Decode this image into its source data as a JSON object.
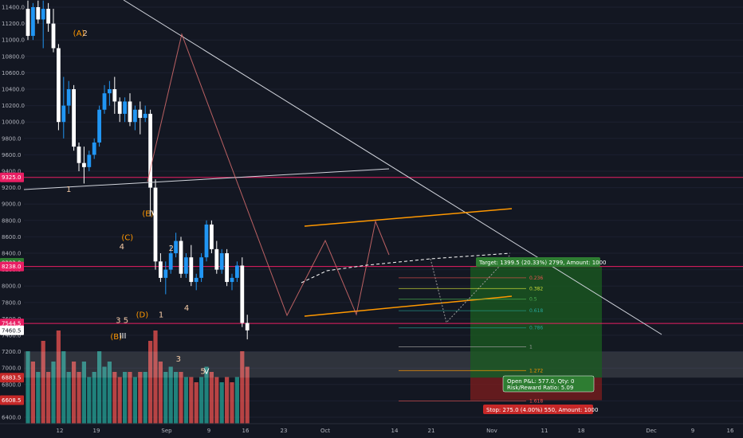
{
  "colors": {
    "background": "#131722",
    "bull": "#2196f3",
    "bear": "#ffffff",
    "vol_bull": "#26a69a",
    "vol_bear": "#ef5350",
    "hline": "#e91e63",
    "orange": "#ff9800",
    "wave_label": "#f5cba7",
    "target_green": "#1b5e20",
    "stop_red": "#7f1d1d",
    "text": "#b2b5be"
  },
  "chart_data": {
    "type": "candlestick",
    "title": "",
    "y_axis": {
      "ticks": [
        "11400.0",
        "11200.0",
        "11000.0",
        "10800.0",
        "10600.0",
        "10400.0",
        "10200.0",
        "10000.0",
        "9800.0",
        "9600.0",
        "9400.0",
        "9200.0",
        "9000.0",
        "8800.0",
        "8600.0",
        "8400.0",
        "8200.0",
        "8000.0",
        "7800.0",
        "7600.0",
        "7400.0",
        "7200.0",
        "7000.0",
        "6800.0",
        "6600.0",
        "6400.0"
      ],
      "range": [
        6320,
        11480
      ]
    },
    "x_axis": {
      "ticks": [
        "12",
        "19",
        "Sep",
        "9",
        "16",
        "23",
        "Oct",
        "14",
        "21",
        "Nov",
        "11",
        "18",
        "Dec",
        "9",
        "16"
      ]
    },
    "price_tags": [
      {
        "label": "9325.0",
        "value": 9325
      },
      {
        "label": "8283.0",
        "value": 8283
      },
      {
        "label": "8238.0",
        "value": 8238
      },
      {
        "label": "7544.5",
        "value": 7544.5
      },
      {
        "label": "7460.5",
        "value": 7460.5
      },
      {
        "label": "6883.5",
        "value": 6883.5
      },
      {
        "label": "6608.5",
        "value": 6608.5
      }
    ],
    "horizontal_lines": [
      9325,
      8238,
      7544.5
    ],
    "wave_labels": [
      {
        "text": "(A)",
        "x": 10,
        "y": 11050
      },
      {
        "text": "2",
        "x": 11.2,
        "y": 11050
      },
      {
        "text": "1",
        "x": 8,
        "y": 9150
      },
      {
        "text": "4",
        "x": 18.4,
        "y": 8450
      },
      {
        "text": "(C)",
        "x": 19.5,
        "y": 8560
      },
      {
        "text": "3",
        "x": 17.7,
        "y": 7550
      },
      {
        "text": "5",
        "x": 19.2,
        "y": 7550
      },
      {
        "text": "(B)",
        "x": 17.3,
        "y": 7350
      },
      {
        "text": "III",
        "x": 18.6,
        "y": 7360
      },
      {
        "text": "(E)",
        "x": 23.5,
        "y": 8850
      },
      {
        "text": "IV",
        "x": 24.5,
        "y": 8850
      },
      {
        "text": "(D)",
        "x": 22.4,
        "y": 7620
      },
      {
        "text": "2",
        "x": 28.1,
        "y": 8430
      },
      {
        "text": "1",
        "x": 26.1,
        "y": 7620
      },
      {
        "text": "4",
        "x": 31.1,
        "y": 7700
      },
      {
        "text": "3",
        "x": 29.5,
        "y": 7080
      },
      {
        "text": "5",
        "x": 34.3,
        "y": 6930
      },
      {
        "text": "V",
        "x": 35,
        "y": 6930
      }
    ],
    "fib_levels": [
      {
        "label": "0.236",
        "value": 8100
      },
      {
        "label": "0.382",
        "value": 7970
      },
      {
        "label": "0.5",
        "value": 7840
      },
      {
        "label": "0.618",
        "value": 7700
      },
      {
        "label": "0.786",
        "value": 7490
      },
      {
        "label": "1",
        "value": 7260
      },
      {
        "label": "1.272",
        "value": 6970
      },
      {
        "label": "1.618",
        "value": 6600
      }
    ],
    "trade": {
      "target_text": "Target: 1399.5 (20.33%) 2799, Amount: 1000",
      "stop_text": "Stop: 275.0 (4.00%) 550, Amount: 1000",
      "pnl_text": "Open P&L: 577.0, Qty: 0",
      "rr_text": "Risk/Reward Ratio: 5.09",
      "entry": 8238,
      "target": 8283,
      "stop": 6883.5
    },
    "candles": [
      [
        11380,
        11480,
        11000,
        11050
      ],
      [
        11050,
        11450,
        11000,
        11400
      ],
      [
        11400,
        11480,
        11200,
        11250
      ],
      [
        11250,
        11480,
        10900,
        11380
      ],
      [
        11380,
        11450,
        11100,
        11200
      ],
      [
        11200,
        11380,
        10850,
        10900
      ],
      [
        10900,
        10950,
        9900,
        10000
      ],
      [
        10000,
        10550,
        9800,
        10200
      ],
      [
        10200,
        10500,
        10100,
        10400
      ],
      [
        10400,
        10450,
        9650,
        9700
      ],
      [
        9700,
        9750,
        9400,
        9500
      ],
      [
        9500,
        9700,
        9250,
        9450
      ],
      [
        9450,
        9650,
        9400,
        9600
      ],
      [
        9600,
        9800,
        9550,
        9750
      ],
      [
        9750,
        10200,
        9700,
        10150
      ],
      [
        10150,
        10450,
        10100,
        10350
      ],
      [
        10350,
        10500,
        10200,
        10400
      ],
      [
        10400,
        10550,
        10100,
        10250
      ],
      [
        10250,
        10300,
        10000,
        10100
      ],
      [
        10100,
        10300,
        10000,
        10250
      ],
      [
        10250,
        10350,
        9950,
        10000
      ],
      [
        10000,
        10200,
        9900,
        10150
      ],
      [
        10150,
        10250,
        9850,
        10050
      ],
      [
        10050,
        10200,
        10000,
        10100
      ],
      [
        10100,
        10150,
        8900,
        9200
      ],
      [
        9200,
        9300,
        8200,
        8300
      ],
      [
        8300,
        8400,
        8050,
        8100
      ],
      [
        8100,
        8300,
        7900,
        8200
      ],
      [
        8200,
        8500,
        8150,
        8400
      ],
      [
        8400,
        8650,
        8350,
        8550
      ],
      [
        8550,
        8600,
        8100,
        8150
      ],
      [
        8150,
        8400,
        8100,
        8350
      ],
      [
        8350,
        8500,
        8000,
        8050
      ],
      [
        8050,
        8150,
        7950,
        8100
      ],
      [
        8100,
        8400,
        8050,
        8350
      ],
      [
        8350,
        8800,
        8300,
        8750
      ],
      [
        8750,
        8800,
        8400,
        8450
      ],
      [
        8450,
        8550,
        8150,
        8200
      ],
      [
        8200,
        8450,
        8150,
        8400
      ],
      [
        8400,
        8450,
        8000,
        8050
      ],
      [
        8050,
        8150,
        7950,
        8100
      ],
      [
        8100,
        8300,
        8050,
        8250
      ],
      [
        8250,
        8350,
        7500,
        7550
      ],
      [
        7550,
        7650,
        7350,
        7460
      ]
    ],
    "volumes": [
      [
        0.7,
        1
      ],
      [
        0.6,
        0
      ],
      [
        0.5,
        1
      ],
      [
        0.8,
        0
      ],
      [
        0.5,
        0
      ],
      [
        0.6,
        1
      ],
      [
        0.9,
        0
      ],
      [
        0.7,
        1
      ],
      [
        0.5,
        1
      ],
      [
        0.6,
        0
      ],
      [
        0.5,
        0
      ],
      [
        0.6,
        1
      ],
      [
        0.45,
        1
      ],
      [
        0.5,
        1
      ],
      [
        0.7,
        1
      ],
      [
        0.55,
        1
      ],
      [
        0.6,
        1
      ],
      [
        0.5,
        0
      ],
      [
        0.45,
        0
      ],
      [
        0.5,
        1
      ],
      [
        0.5,
        0
      ],
      [
        0.45,
        1
      ],
      [
        0.5,
        0
      ],
      [
        0.5,
        1
      ],
      [
        0.8,
        0
      ],
      [
        0.9,
        0
      ],
      [
        0.6,
        0
      ],
      [
        0.5,
        1
      ],
      [
        0.55,
        1
      ],
      [
        0.5,
        1
      ],
      [
        0.5,
        0
      ],
      [
        0.45,
        1
      ],
      [
        0.45,
        0
      ],
      [
        0.4,
        0
      ],
      [
        0.45,
        1
      ],
      [
        0.55,
        1
      ],
      [
        0.5,
        0
      ],
      [
        0.45,
        0
      ],
      [
        0.4,
        1
      ],
      [
        0.45,
        0
      ],
      [
        0.4,
        0
      ],
      [
        0.45,
        1
      ],
      [
        0.7,
        0
      ],
      [
        0.55,
        0
      ]
    ]
  }
}
